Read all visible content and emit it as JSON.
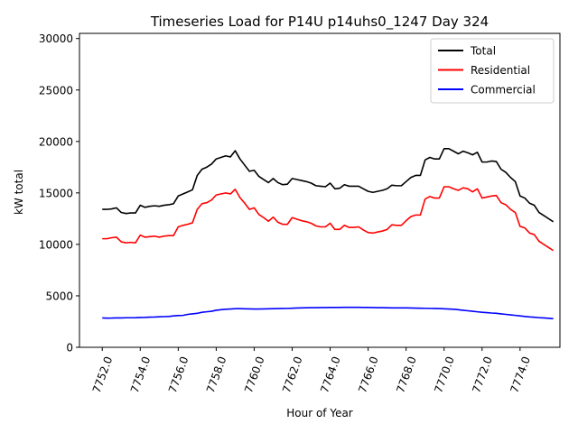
{
  "chart_data": {
    "type": "line",
    "title": "Timeseries Load for P14U p14uhs0_1247  Day 324",
    "xlabel": "Hour of Year",
    "ylabel": "kW total",
    "xlim": [
      7750.8,
      7776.1
    ],
    "ylim": [
      0,
      30500
    ],
    "x_ticks": [
      7752.0,
      7754.0,
      7756.0,
      7758.0,
      7760.0,
      7762.0,
      7764.0,
      7766.0,
      7768.0,
      7770.0,
      7772.0,
      7774.0
    ],
    "x_tick_labels": [
      "7752.0",
      "7754.0",
      "7756.0",
      "7758.0",
      "7760.0",
      "7762.0",
      "7764.0",
      "7766.0",
      "7768.0",
      "7770.0",
      "7772.0",
      "7774.0"
    ],
    "y_ticks": [
      0,
      5000,
      10000,
      15000,
      20000,
      25000,
      30000
    ],
    "y_tick_labels": [
      "0",
      "5000",
      "10000",
      "15000",
      "20000",
      "25000",
      "30000"
    ],
    "legend": {
      "position": "top-right"
    },
    "x_start": 7752.0,
    "x_step": 0.25,
    "series": [
      {
        "name": "Total",
        "color": "#000000",
        "values": [
          13400,
          13400,
          13450,
          13550,
          13100,
          13000,
          13050,
          13050,
          13800,
          13600,
          13700,
          13750,
          13700,
          13800,
          13850,
          13950,
          14700,
          14900,
          15100,
          15300,
          16700,
          17300,
          17500,
          17800,
          18300,
          18450,
          18600,
          18500,
          19100,
          18300,
          17700,
          17100,
          17200,
          16600,
          16300,
          16000,
          16400,
          16000,
          15800,
          15850,
          16400,
          16300,
          16200,
          16100,
          15950,
          15700,
          15650,
          15600,
          15950,
          15400,
          15450,
          15800,
          15650,
          15650,
          15650,
          15400,
          15150,
          15050,
          15150,
          15250,
          15400,
          15750,
          15700,
          15700,
          16100,
          16500,
          16700,
          16700,
          18200,
          18450,
          18300,
          18300,
          19300,
          19300,
          19050,
          18800,
          19050,
          18900,
          18700,
          18950,
          18000,
          18000,
          18100,
          18050,
          17300,
          17000,
          16500,
          16100,
          14700,
          14500,
          14000,
          13800,
          13100,
          12800,
          12500,
          12200
        ]
      },
      {
        "name": "Residential",
        "color": "#ff0000",
        "values": [
          10550,
          10550,
          10650,
          10700,
          10250,
          10150,
          10200,
          10150,
          10900,
          10700,
          10750,
          10800,
          10700,
          10800,
          10850,
          10850,
          11700,
          11850,
          11950,
          12100,
          13400,
          13950,
          14050,
          14300,
          14800,
          14900,
          15000,
          14900,
          15350,
          14550,
          14000,
          13400,
          13550,
          12900,
          12600,
          12250,
          12650,
          12150,
          11950,
          11950,
          12600,
          12450,
          12300,
          12200,
          12050,
          11800,
          11700,
          11700,
          12050,
          11450,
          11450,
          11850,
          11650,
          11650,
          11700,
          11400,
          11150,
          11100,
          11200,
          11300,
          11450,
          11900,
          11850,
          11850,
          12300,
          12700,
          12850,
          12850,
          14400,
          14650,
          14500,
          14500,
          15600,
          15600,
          15400,
          15250,
          15500,
          15400,
          15100,
          15400,
          14500,
          14600,
          14700,
          14750,
          14050,
          13850,
          13400,
          13100,
          11750,
          11600,
          11100,
          10950,
          10300,
          10000,
          9700,
          9400
        ]
      },
      {
        "name": "Commercial",
        "color": "#0000ff",
        "values": [
          2850,
          2830,
          2840,
          2860,
          2850,
          2870,
          2870,
          2880,
          2900,
          2910,
          2930,
          2940,
          2960,
          2980,
          3000,
          3050,
          3080,
          3100,
          3200,
          3250,
          3300,
          3400,
          3450,
          3500,
          3600,
          3650,
          3700,
          3720,
          3750,
          3750,
          3740,
          3730,
          3720,
          3720,
          3730,
          3740,
          3750,
          3760,
          3770,
          3780,
          3800,
          3820,
          3830,
          3840,
          3850,
          3850,
          3860,
          3860,
          3870,
          3870,
          3870,
          3880,
          3880,
          3880,
          3880,
          3870,
          3870,
          3860,
          3850,
          3850,
          3840,
          3830,
          3830,
          3830,
          3830,
          3820,
          3810,
          3800,
          3790,
          3780,
          3770,
          3760,
          3740,
          3720,
          3700,
          3650,
          3600,
          3550,
          3500,
          3450,
          3400,
          3370,
          3330,
          3300,
          3250,
          3200,
          3150,
          3100,
          3050,
          3000,
          2950,
          2920,
          2880,
          2850,
          2820,
          2780
        ]
      }
    ]
  }
}
